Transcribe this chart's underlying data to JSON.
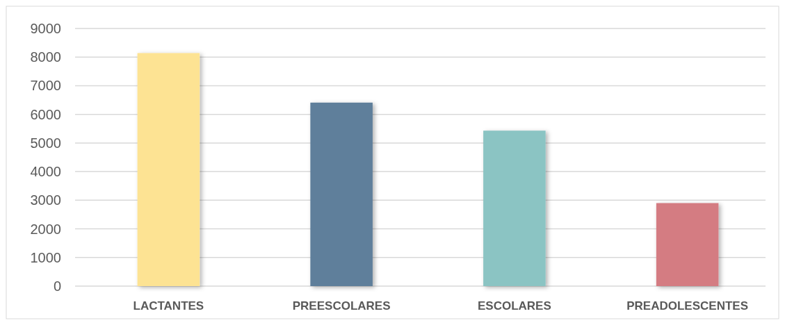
{
  "chart_data": {
    "type": "bar",
    "categories": [
      "LACTANTES",
      "PREESCOLARES",
      "ESCOLARES",
      "PREADOLESCENTES"
    ],
    "values": [
      8140,
      6410,
      5430,
      2900
    ],
    "colors": [
      "#fde393",
      "#5f7f9b",
      "#8bc4c3",
      "#d47b82"
    ],
    "ylim": [
      0,
      9000
    ],
    "yticks": [
      0,
      1000,
      2000,
      3000,
      4000,
      5000,
      6000,
      7000,
      8000,
      9000
    ],
    "grid": "y"
  }
}
